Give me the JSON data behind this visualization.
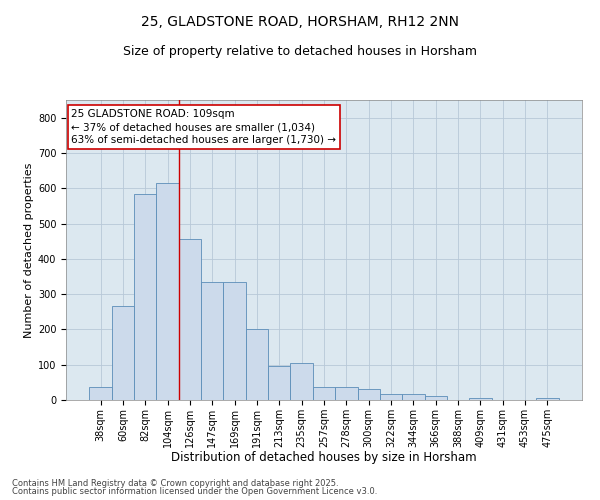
{
  "title": "25, GLADSTONE ROAD, HORSHAM, RH12 2NN",
  "subtitle": "Size of property relative to detached houses in Horsham",
  "xlabel": "Distribution of detached houses by size in Horsham",
  "ylabel": "Number of detached properties",
  "footnote1": "Contains HM Land Registry data © Crown copyright and database right 2025.",
  "footnote2": "Contains public sector information licensed under the Open Government Licence v3.0.",
  "categories": [
    "38sqm",
    "60sqm",
    "82sqm",
    "104sqm",
    "126sqm",
    "147sqm",
    "169sqm",
    "191sqm",
    "213sqm",
    "235sqm",
    "257sqm",
    "278sqm",
    "300sqm",
    "322sqm",
    "344sqm",
    "366sqm",
    "388sqm",
    "409sqm",
    "431sqm",
    "453sqm",
    "475sqm"
  ],
  "values": [
    37,
    265,
    585,
    615,
    455,
    335,
    335,
    200,
    95,
    105,
    38,
    38,
    32,
    18,
    18,
    10,
    0,
    5,
    0,
    0,
    5
  ],
  "bar_color": "#ccdaeb",
  "bar_edge_color": "#5b8db8",
  "bar_linewidth": 0.6,
  "grid_color": "#b8c8d8",
  "bg_color": "#dce8f0",
  "annotation_text": "25 GLADSTONE ROAD: 109sqm\n← 37% of detached houses are smaller (1,034)\n63% of semi-detached houses are larger (1,730) →",
  "annotation_box_color": "#ffffff",
  "annotation_box_edge": "#cc0000",
  "vline_color": "#cc0000",
  "vline_pos": 3.5,
  "ylim": [
    0,
    850
  ],
  "yticks": [
    0,
    100,
    200,
    300,
    400,
    500,
    600,
    700,
    800
  ],
  "title_fontsize": 10,
  "subtitle_fontsize": 9,
  "xlabel_fontsize": 8.5,
  "ylabel_fontsize": 8,
  "tick_fontsize": 7,
  "annot_fontsize": 7.5,
  "footnote_fontsize": 6
}
